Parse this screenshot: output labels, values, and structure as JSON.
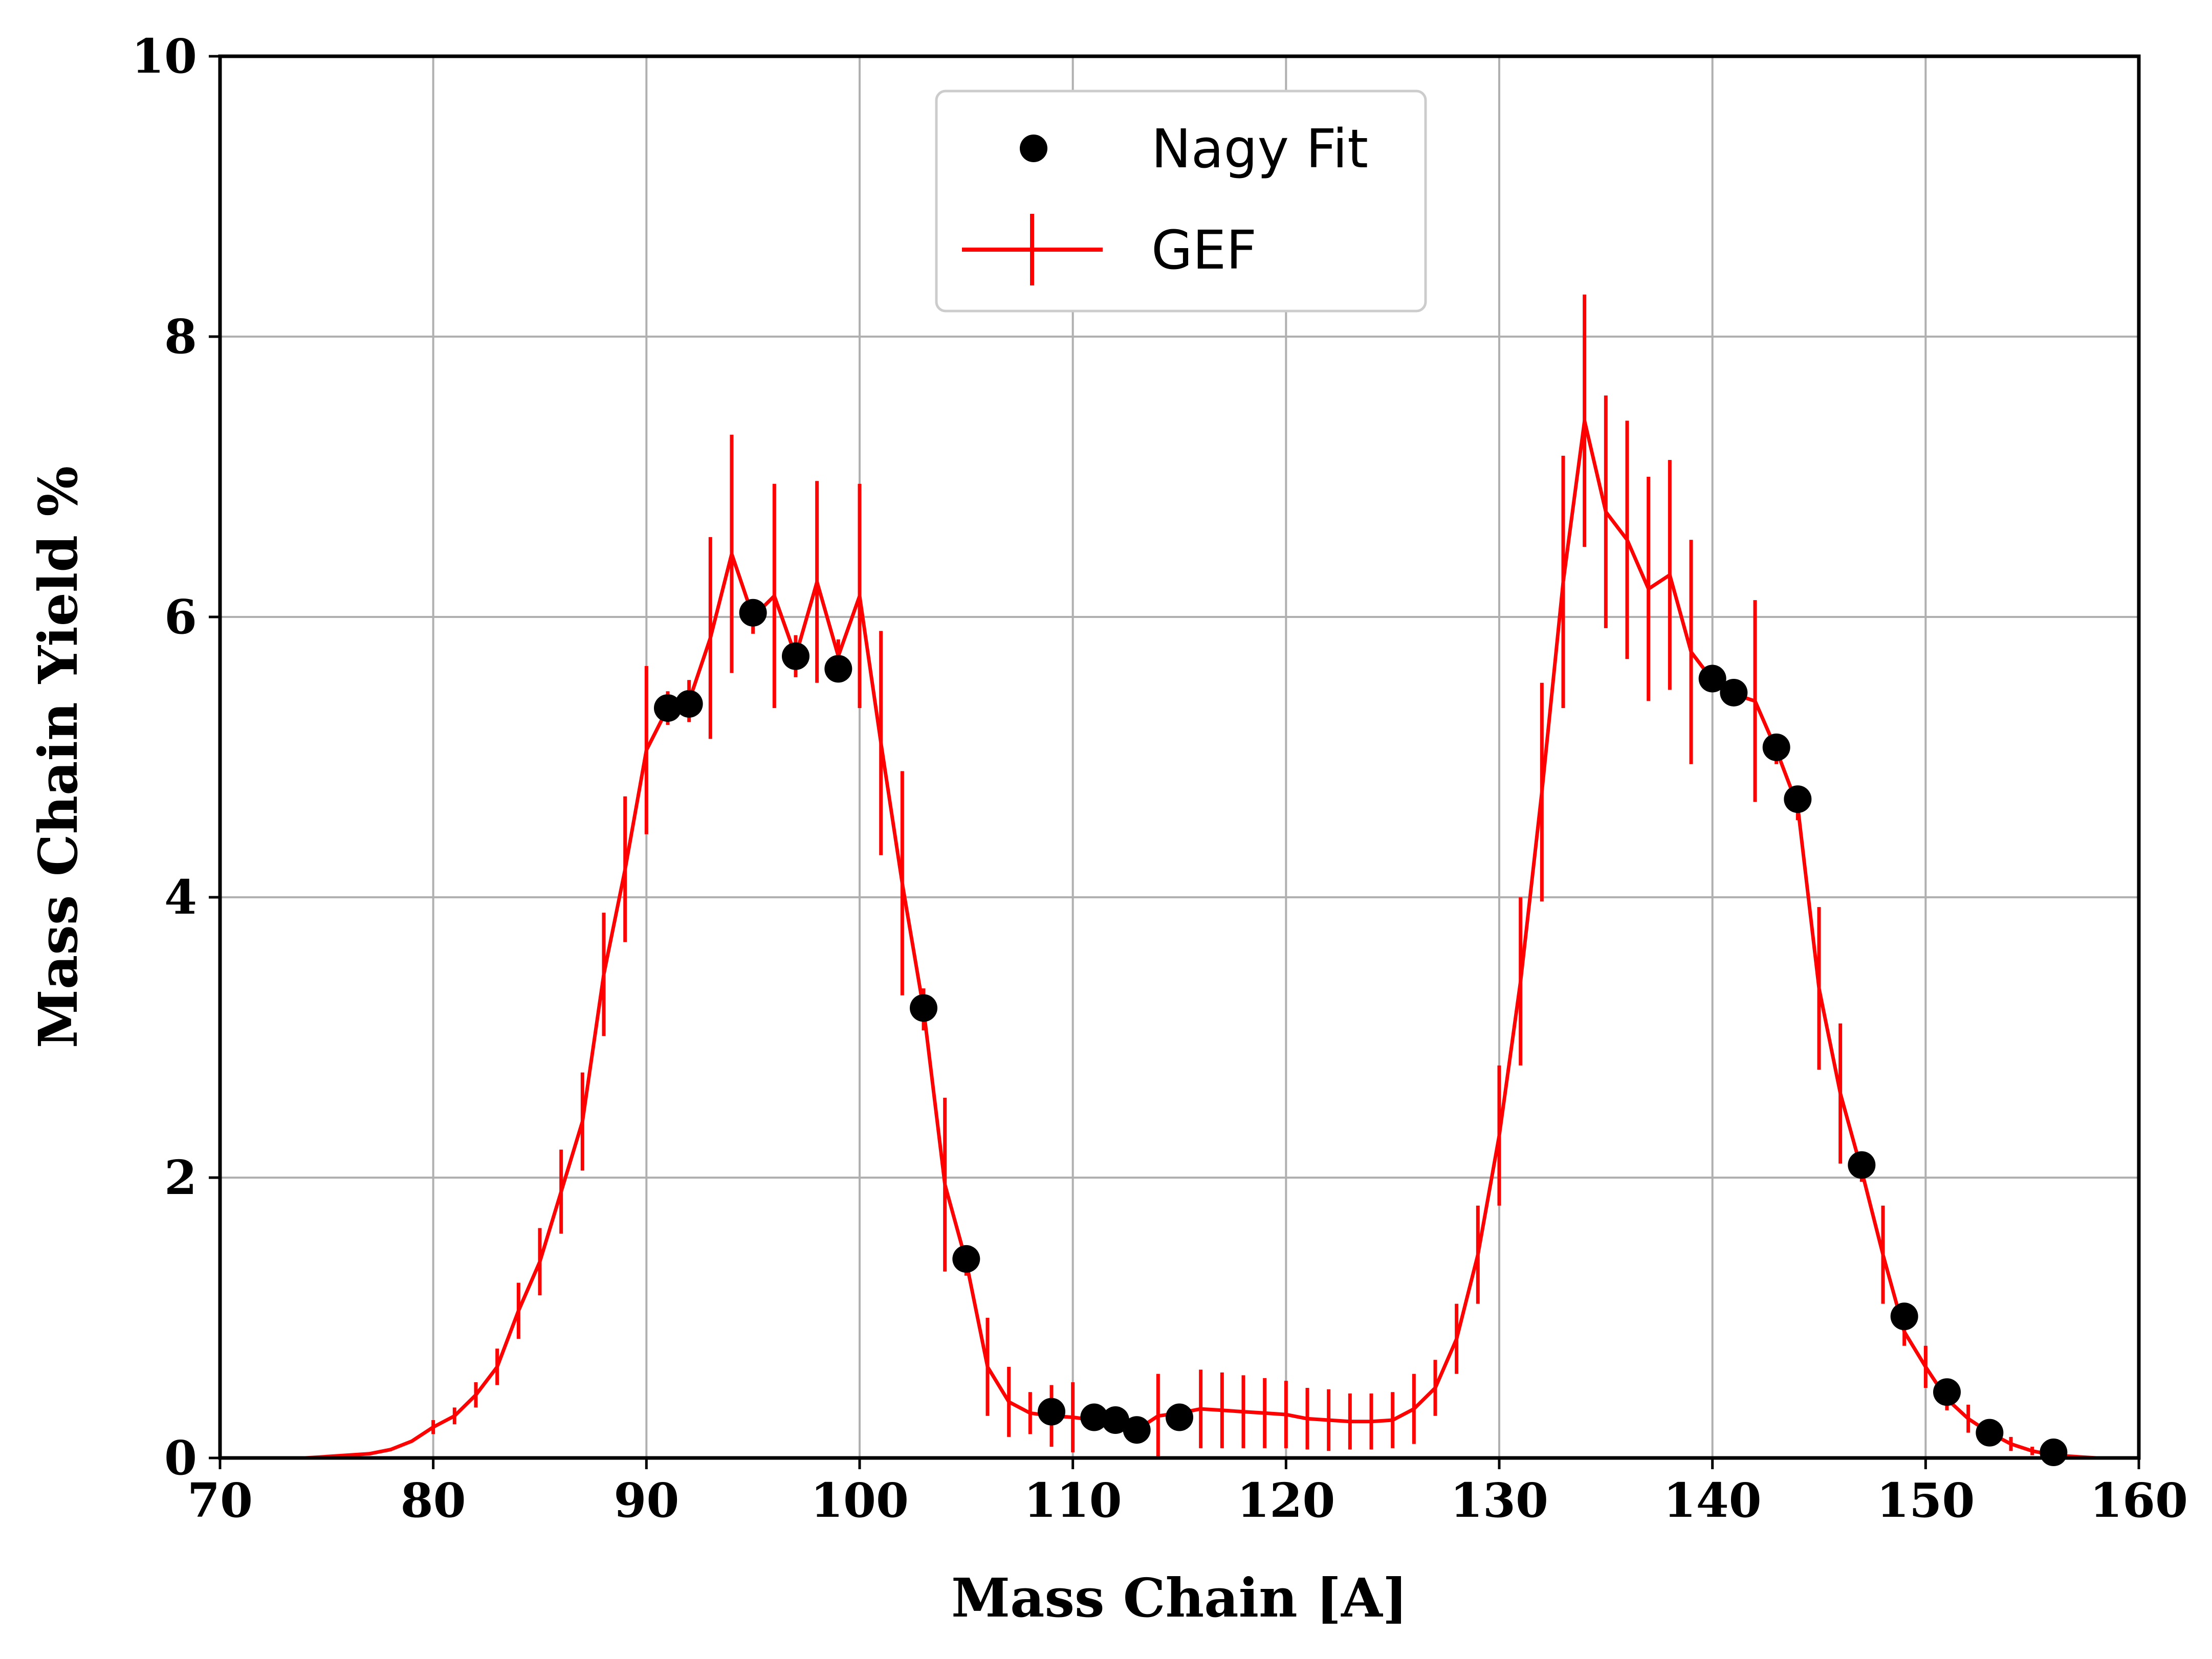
{
  "chart_data": {
    "type": "line",
    "xlabel": "Mass Chain [A]",
    "ylabel": "Mass Chain Yield %",
    "xlim": [
      70,
      160
    ],
    "ylim": [
      0,
      10
    ],
    "xticks": [
      "70",
      "80",
      "90",
      "100",
      "110",
      "120",
      "130",
      "140",
      "150",
      "160"
    ],
    "yticks": [
      "0",
      "2",
      "4",
      "6",
      "8",
      "10"
    ],
    "grid": true,
    "legend_position": "top-center",
    "colors": {
      "gef": "#ff0000",
      "nagy": "#000000",
      "grid": "#b0b0b0"
    },
    "series": [
      {
        "name": "Nagy Fit",
        "marker": "circle",
        "x": [
          91,
          92,
          95,
          97,
          99,
          103,
          105,
          109,
          111,
          112,
          113,
          115,
          140,
          141,
          143,
          144,
          147,
          149,
          151,
          153,
          156
        ],
        "y": [
          5.35,
          5.38,
          6.03,
          5.72,
          5.63,
          3.21,
          1.42,
          0.33,
          0.29,
          0.27,
          0.2,
          0.29,
          5.56,
          5.46,
          5.07,
          4.7,
          2.09,
          1.01,
          0.47,
          0.18,
          0.04
        ]
      },
      {
        "name": "GEF",
        "marker": "errorbar",
        "x": [
          74,
          75,
          76,
          77,
          78,
          79,
          80,
          81,
          82,
          83,
          84,
          85,
          86,
          87,
          88,
          89,
          90,
          91,
          92,
          93,
          94,
          95,
          96,
          97,
          98,
          99,
          100,
          101,
          102,
          103,
          104,
          105,
          106,
          107,
          108,
          109,
          110,
          111,
          112,
          113,
          114,
          115,
          116,
          117,
          118,
          119,
          120,
          121,
          122,
          123,
          124,
          125,
          126,
          127,
          128,
          129,
          130,
          131,
          132,
          133,
          134,
          135,
          136,
          137,
          138,
          139,
          140,
          141,
          142,
          143,
          144,
          145,
          146,
          147,
          148,
          149,
          150,
          151,
          152,
          153,
          154,
          155,
          156,
          157,
          158,
          159,
          160
        ],
        "y": [
          0.0,
          0.01,
          0.02,
          0.03,
          0.06,
          0.12,
          0.22,
          0.3,
          0.45,
          0.65,
          1.05,
          1.4,
          1.9,
          2.4,
          3.45,
          4.2,
          5.05,
          5.35,
          5.4,
          5.85,
          6.45,
          6.0,
          6.15,
          5.72,
          6.25,
          5.72,
          6.15,
          5.1,
          4.1,
          3.2,
          1.95,
          1.4,
          0.65,
          0.4,
          0.32,
          0.3,
          0.29,
          0.27,
          0.26,
          0.2,
          0.3,
          0.32,
          0.35,
          0.34,
          0.33,
          0.32,
          0.31,
          0.28,
          0.27,
          0.26,
          0.26,
          0.27,
          0.35,
          0.5,
          0.85,
          1.45,
          2.3,
          3.4,
          4.75,
          6.25,
          7.4,
          6.75,
          6.55,
          6.2,
          6.3,
          5.75,
          5.55,
          5.45,
          5.4,
          5.05,
          4.65,
          3.35,
          2.6,
          2.05,
          1.45,
          0.9,
          0.65,
          0.42,
          0.28,
          0.18,
          0.1,
          0.05,
          0.02,
          0.01,
          0.0,
          0.0,
          0.0
        ],
        "yerr": [
          0,
          0,
          0,
          0,
          0,
          0,
          0.05,
          0.06,
          0.09,
          0.13,
          0.2,
          0.24,
          0.3,
          0.35,
          0.44,
          0.52,
          0.6,
          0.12,
          0.15,
          0.72,
          0.85,
          0.12,
          0.8,
          0.15,
          0.72,
          0.12,
          0.8,
          0.8,
          0.8,
          0.15,
          0.62,
          0.1,
          0.35,
          0.25,
          0.15,
          0.22,
          0.25,
          0.02,
          0.02,
          0.02,
          0.3,
          0.02,
          0.28,
          0.27,
          0.26,
          0.25,
          0.24,
          0.22,
          0.22,
          0.2,
          0.2,
          0.2,
          0.25,
          0.2,
          0.25,
          0.35,
          0.5,
          0.6,
          0.78,
          0.9,
          0.9,
          0.83,
          0.85,
          0.8,
          0.82,
          0.8,
          0.05,
          0.05,
          0.72,
          0.1,
          0.1,
          0.58,
          0.5,
          0.08,
          0.35,
          0.1,
          0.15,
          0.08,
          0.1,
          0.08,
          0.05,
          0.03,
          0.03,
          0,
          0,
          0,
          0
        ]
      }
    ]
  }
}
